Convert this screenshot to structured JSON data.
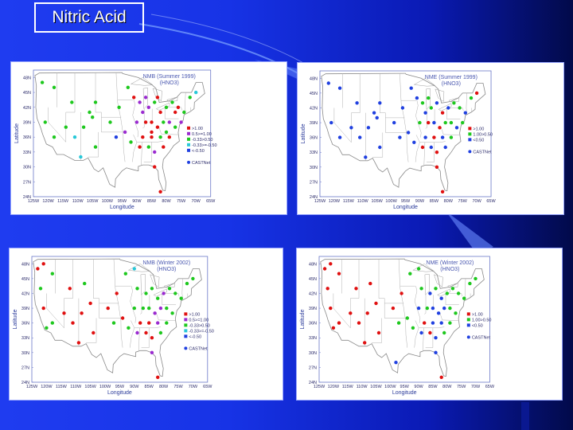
{
  "slide": {
    "title": "Nitric Acid"
  },
  "panels": [
    {
      "id": "nmb-summer",
      "title_line1": "NMB (Summer 1999)",
      "title_line2": "(HNO3)",
      "xlabel": "Longitude",
      "ylabel": "Latitude",
      "legend": [
        ">1.00",
        "0.5>=1.00",
        "-0.33>0.50",
        "-0.33>=-0.50",
        "<-0.50"
      ],
      "legend_colors": [
        "#e01010",
        "#9a2ad0",
        "#1ec81e",
        "#28c8d8",
        "#2040e0"
      ],
      "network": "CASTNet",
      "network_color": "#2040e0"
    },
    {
      "id": "nme-summer",
      "title_line1": "NME (Summer 1999)",
      "title_line2": "(HNO3)",
      "xlabel": "Longitude",
      "ylabel": "Latitude",
      "legend": [
        ">1.00",
        "1.00>0.50",
        "<0.50"
      ],
      "legend_colors": [
        "#e01010",
        "#1ec81e",
        "#2040e0"
      ],
      "network": "CASTNet",
      "network_color": "#2040e0"
    },
    {
      "id": "nmb-winter",
      "title_line1": "NMB (Winter 2002)",
      "title_line2": "(HNO3)",
      "xlabel": "Longitude",
      "ylabel": "Latitude",
      "legend": [
        ">1.00",
        "0.5>=1.00",
        "-0.33>0.50",
        "-0.33>=-0.50",
        "<-0.50"
      ],
      "legend_colors": [
        "#e01010",
        "#9a2ad0",
        "#1ec81e",
        "#28c8d8",
        "#2040e0"
      ],
      "network": "CASTNet",
      "network_color": "#2040e0"
    },
    {
      "id": "nme-winter",
      "title_line1": "NME (Winter 2002)",
      "title_line2": "(HNO3)",
      "xlabel": "Longitude",
      "ylabel": "Latitude",
      "legend": [
        ">1.00",
        "1.00>0.50",
        "<0.50"
      ],
      "legend_colors": [
        "#e01010",
        "#1ec81e",
        "#2040e0"
      ],
      "network": "CASTNet",
      "network_color": "#2040e0"
    }
  ],
  "axes": {
    "lat_ticks": [
      "48N",
      "45N",
      "42N",
      "39N",
      "36N",
      "33N",
      "30N",
      "27N",
      "24N"
    ],
    "lon_ticks": [
      "125W",
      "120W",
      "115W",
      "110W",
      "105W",
      "100W",
      "95W",
      "90W",
      "85W",
      "80W",
      "75W",
      "70W",
      "65W"
    ]
  },
  "stations": {
    "summer_nmb": [
      [
        -122,
        47,
        "#1ec81e"
      ],
      [
        -118,
        46,
        "#1ec81e"
      ],
      [
        -112,
        43,
        "#1ec81e"
      ],
      [
        -106,
        41,
        "#1ec81e"
      ],
      [
        -104,
        43,
        "#1ec81e"
      ],
      [
        -121,
        39,
        "#1ec81e"
      ],
      [
        -118,
        36,
        "#1ec81e"
      ],
      [
        -114,
        38,
        "#1ec81e"
      ],
      [
        -108,
        38,
        "#1ec81e"
      ],
      [
        -105,
        40,
        "#1ec81e"
      ],
      [
        -111,
        36,
        "#28c8d8"
      ],
      [
        -109,
        32,
        "#28c8d8"
      ],
      [
        -99,
        39,
        "#1ec81e"
      ],
      [
        -97,
        36,
        "#2040e0"
      ],
      [
        -104,
        34,
        "#1ec81e"
      ],
      [
        -96,
        42,
        "#1ec81e"
      ],
      [
        -93,
        46,
        "#1ec81e"
      ],
      [
        -91,
        44,
        "#e01010"
      ],
      [
        -89,
        43,
        "#9a2ad0"
      ],
      [
        -88,
        41,
        "#9a2ad0"
      ],
      [
        -86,
        42,
        "#9a2ad0"
      ],
      [
        -84,
        43,
        "#1ec81e"
      ],
      [
        -82,
        41,
        "#e01010"
      ],
      [
        -80,
        42,
        "#1ec81e"
      ],
      [
        -78,
        43,
        "#1ec81e"
      ],
      [
        -76,
        42,
        "#e01010"
      ],
      [
        -74,
        41,
        "#1ec81e"
      ],
      [
        -72,
        44,
        "#1ec81e"
      ],
      [
        -70,
        45,
        "#28c8d8"
      ],
      [
        -90,
        39,
        "#9a2ad0"
      ],
      [
        -87,
        39,
        "#e01010"
      ],
      [
        -85,
        39,
        "#e01010"
      ],
      [
        -83,
        38,
        "#e01010"
      ],
      [
        -81,
        39,
        "#1ec81e"
      ],
      [
        -79,
        39,
        "#9a2ad0"
      ],
      [
        -77,
        38,
        "#1ec81e"
      ],
      [
        -75,
        39,
        "#9a2ad0"
      ],
      [
        -88,
        36,
        "#e01010"
      ],
      [
        -85,
        36,
        "#e01010"
      ],
      [
        -82,
        36,
        "#1ec81e"
      ],
      [
        -79,
        36,
        "#e01010"
      ],
      [
        -89,
        34,
        "#e01010"
      ],
      [
        -86,
        34,
        "#1ec81e"
      ],
      [
        -84,
        33,
        "#9a2ad0"
      ],
      [
        -81,
        34,
        "#e01010"
      ],
      [
        -92,
        35,
        "#1ec81e"
      ],
      [
        -94,
        37,
        "#9a2ad0"
      ],
      [
        -84,
        30,
        "#e01010"
      ],
      [
        -82,
        25,
        "#e01010"
      ],
      [
        -87,
        44,
        "#9a2ad0"
      ],
      [
        -83,
        44,
        "#e01010"
      ],
      [
        -85,
        37,
        "#e01010"
      ],
      [
        -80,
        37,
        "#1ec81e"
      ],
      [
        -77,
        41,
        "#e01010"
      ]
    ],
    "summer_nme": [
      [
        -122,
        47,
        "#2040e0"
      ],
      [
        -118,
        46,
        "#2040e0"
      ],
      [
        -112,
        43,
        "#2040e0"
      ],
      [
        -106,
        41,
        "#2040e0"
      ],
      [
        -104,
        43,
        "#2040e0"
      ],
      [
        -121,
        39,
        "#2040e0"
      ],
      [
        -118,
        36,
        "#2040e0"
      ],
      [
        -114,
        38,
        "#2040e0"
      ],
      [
        -108,
        38,
        "#2040e0"
      ],
      [
        -105,
        40,
        "#2040e0"
      ],
      [
        -111,
        36,
        "#2040e0"
      ],
      [
        -109,
        32,
        "#2040e0"
      ],
      [
        -99,
        39,
        "#2040e0"
      ],
      [
        -97,
        36,
        "#2040e0"
      ],
      [
        -104,
        34,
        "#2040e0"
      ],
      [
        -96,
        42,
        "#2040e0"
      ],
      [
        -93,
        46,
        "#2040e0"
      ],
      [
        -91,
        44,
        "#2040e0"
      ],
      [
        -89,
        43,
        "#1ec81e"
      ],
      [
        -88,
        41,
        "#2040e0"
      ],
      [
        -86,
        42,
        "#1ec81e"
      ],
      [
        -84,
        43,
        "#2040e0"
      ],
      [
        -82,
        41,
        "#e01010"
      ],
      [
        -80,
        42,
        "#2040e0"
      ],
      [
        -78,
        43,
        "#1ec81e"
      ],
      [
        -76,
        42,
        "#1ec81e"
      ],
      [
        -74,
        41,
        "#2040e0"
      ],
      [
        -72,
        44,
        "#1ec81e"
      ],
      [
        -70,
        45,
        "#e01010"
      ],
      [
        -90,
        39,
        "#1ec81e"
      ],
      [
        -87,
        39,
        "#e01010"
      ],
      [
        -85,
        39,
        "#2040e0"
      ],
      [
        -83,
        38,
        "#e01010"
      ],
      [
        -81,
        39,
        "#1ec81e"
      ],
      [
        -79,
        39,
        "#1ec81e"
      ],
      [
        -77,
        38,
        "#2040e0"
      ],
      [
        -75,
        39,
        "#1ec81e"
      ],
      [
        -88,
        36,
        "#2040e0"
      ],
      [
        -85,
        36,
        "#e01010"
      ],
      [
        -82,
        36,
        "#2040e0"
      ],
      [
        -79,
        36,
        "#1ec81e"
      ],
      [
        -89,
        34,
        "#e01010"
      ],
      [
        -86,
        34,
        "#2040e0"
      ],
      [
        -84,
        33,
        "#e01010"
      ],
      [
        -81,
        34,
        "#2040e0"
      ],
      [
        -92,
        35,
        "#2040e0"
      ],
      [
        -94,
        37,
        "#2040e0"
      ],
      [
        -84,
        30,
        "#e01010"
      ],
      [
        -82,
        25,
        "#e01010"
      ],
      [
        -87,
        44,
        "#1ec81e"
      ]
    ],
    "winter_nmb": [
      [
        -123,
        47,
        "#e01010"
      ],
      [
        -121,
        48,
        "#e01010"
      ],
      [
        -122,
        43,
        "#1ec81e"
      ],
      [
        -118,
        46,
        "#1ec81e"
      ],
      [
        -112,
        43,
        "#e01010"
      ],
      [
        -107,
        44,
        "#1ec81e"
      ],
      [
        -105,
        40,
        "#e01010"
      ],
      [
        -108,
        38,
        "#e01010"
      ],
      [
        -114,
        38,
        "#e01010"
      ],
      [
        -121,
        39,
        "#e01010"
      ],
      [
        -118,
        36,
        "#1ec81e"
      ],
      [
        -120,
        35,
        "#1ec81e"
      ],
      [
        -111,
        36,
        "#e01010"
      ],
      [
        -109,
        32,
        "#e01010"
      ],
      [
        -104,
        34,
        "#e01010"
      ],
      [
        -99,
        39,
        "#e01010"
      ],
      [
        -97,
        36,
        "#1ec81e"
      ],
      [
        -96,
        42,
        "#e01010"
      ],
      [
        -93,
        46,
        "#1ec81e"
      ],
      [
        -90,
        47,
        "#28c8d8"
      ],
      [
        -89,
        43,
        "#1ec81e"
      ],
      [
        -86,
        42,
        "#1ec81e"
      ],
      [
        -84,
        43,
        "#1ec81e"
      ],
      [
        -82,
        41,
        "#1ec81e"
      ],
      [
        -80,
        42,
        "#9a2ad0"
      ],
      [
        -78,
        43,
        "#1ec81e"
      ],
      [
        -76,
        42,
        "#1ec81e"
      ],
      [
        -74,
        41,
        "#1ec81e"
      ],
      [
        -72,
        44,
        "#1ec81e"
      ],
      [
        -70,
        45,
        "#1ec81e"
      ],
      [
        -90,
        39,
        "#1ec81e"
      ],
      [
        -87,
        39,
        "#1ec81e"
      ],
      [
        -85,
        39,
        "#1ec81e"
      ],
      [
        -83,
        38,
        "#9a2ad0"
      ],
      [
        -81,
        39,
        "#9a2ad0"
      ],
      [
        -79,
        39,
        "#1ec81e"
      ],
      [
        -77,
        38,
        "#1ec81e"
      ],
      [
        -88,
        36,
        "#e01010"
      ],
      [
        -85,
        36,
        "#e01010"
      ],
      [
        -82,
        36,
        "#9a2ad0"
      ],
      [
        -79,
        36,
        "#1ec81e"
      ],
      [
        -89,
        34,
        "#9a2ad0"
      ],
      [
        -86,
        34,
        "#e01010"
      ],
      [
        -84,
        33,
        "#e01010"
      ],
      [
        -81,
        34,
        "#1ec81e"
      ],
      [
        -92,
        35,
        "#1ec81e"
      ],
      [
        -94,
        37,
        "#e01010"
      ],
      [
        -84,
        30,
        "#9a2ad0"
      ],
      [
        -82,
        25,
        "#e01010"
      ]
    ],
    "winter_nme": [
      [
        -123,
        47,
        "#e01010"
      ],
      [
        -121,
        48,
        "#e01010"
      ],
      [
        -122,
        43,
        "#e01010"
      ],
      [
        -118,
        46,
        "#e01010"
      ],
      [
        -112,
        43,
        "#e01010"
      ],
      [
        -107,
        44,
        "#e01010"
      ],
      [
        -105,
        40,
        "#e01010"
      ],
      [
        -108,
        38,
        "#e01010"
      ],
      [
        -114,
        38,
        "#e01010"
      ],
      [
        -121,
        39,
        "#e01010"
      ],
      [
        -118,
        36,
        "#e01010"
      ],
      [
        -120,
        35,
        "#e01010"
      ],
      [
        -111,
        36,
        "#e01010"
      ],
      [
        -109,
        32,
        "#e01010"
      ],
      [
        -104,
        34,
        "#e01010"
      ],
      [
        -99,
        39,
        "#e01010"
      ],
      [
        -97,
        36,
        "#1ec81e"
      ],
      [
        -96,
        42,
        "#e01010"
      ],
      [
        -93,
        46,
        "#1ec81e"
      ],
      [
        -90,
        47,
        "#1ec81e"
      ],
      [
        -89,
        43,
        "#1ec81e"
      ],
      [
        -86,
        42,
        "#2040e0"
      ],
      [
        -84,
        43,
        "#1ec81e"
      ],
      [
        -82,
        41,
        "#2040e0"
      ],
      [
        -80,
        42,
        "#1ec81e"
      ],
      [
        -78,
        43,
        "#1ec81e"
      ],
      [
        -76,
        42,
        "#1ec81e"
      ],
      [
        -74,
        41,
        "#1ec81e"
      ],
      [
        -72,
        44,
        "#1ec81e"
      ],
      [
        -70,
        45,
        "#1ec81e"
      ],
      [
        -90,
        39,
        "#2040e0"
      ],
      [
        -87,
        39,
        "#1ec81e"
      ],
      [
        -85,
        39,
        "#2040e0"
      ],
      [
        -83,
        38,
        "#2040e0"
      ],
      [
        -81,
        39,
        "#2040e0"
      ],
      [
        -79,
        39,
        "#1ec81e"
      ],
      [
        -77,
        38,
        "#1ec81e"
      ],
      [
        -88,
        36,
        "#e01010"
      ],
      [
        -85,
        36,
        "#2040e0"
      ],
      [
        -82,
        36,
        "#2040e0"
      ],
      [
        -79,
        36,
        "#1ec81e"
      ],
      [
        -89,
        34,
        "#2040e0"
      ],
      [
        -86,
        34,
        "#e01010"
      ],
      [
        -84,
        33,
        "#2040e0"
      ],
      [
        -81,
        34,
        "#1ec81e"
      ],
      [
        -92,
        35,
        "#1ec81e"
      ],
      [
        -94,
        37,
        "#1ec81e"
      ],
      [
        -84,
        30,
        "#2040e0"
      ],
      [
        -82,
        25,
        "#e01010"
      ],
      [
        -98,
        28,
        "#2040e0"
      ]
    ]
  }
}
